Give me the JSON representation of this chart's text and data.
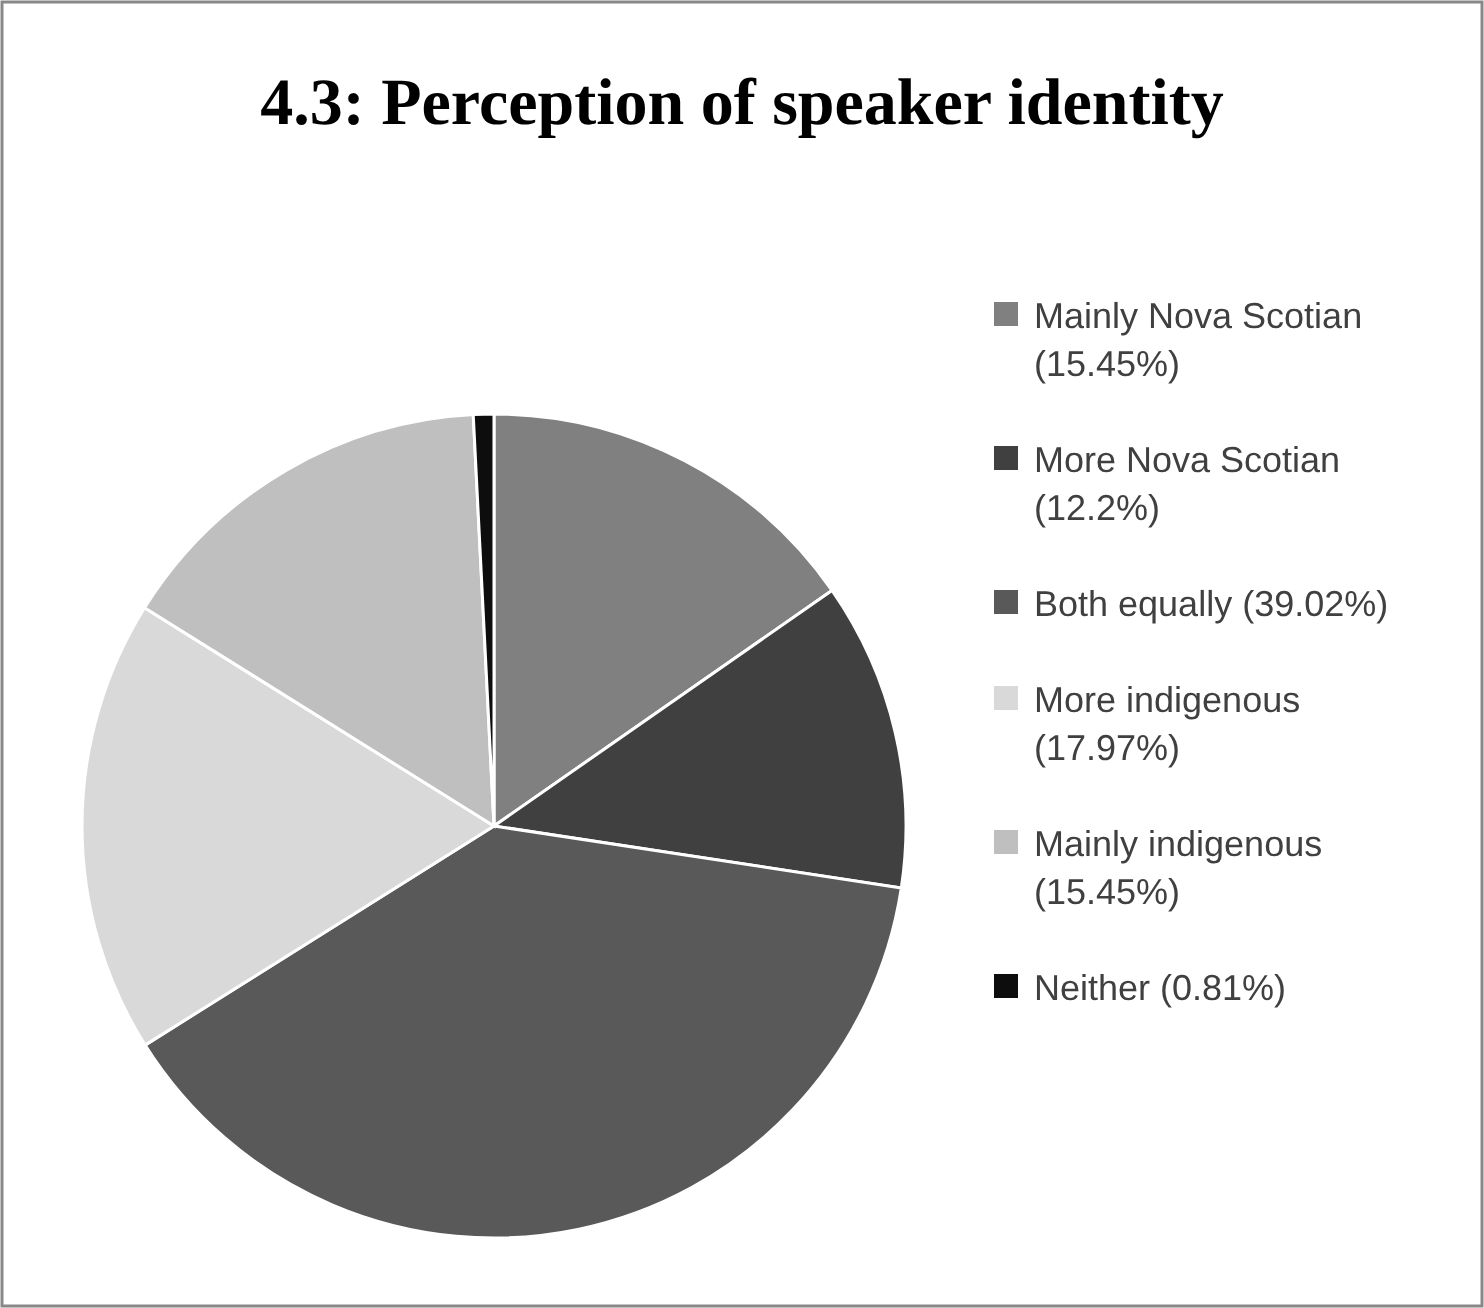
{
  "chart_data": {
    "type": "pie",
    "title": "4.3: Perception of speaker identity",
    "categories": [
      "Mainly Nova Scotian (15.45%)",
      "More Nova Scotian (12.2%)",
      "Both equally (39.02%)",
      "More indigenous (17.97%)",
      "Mainly indigenous (15.45%)",
      "Neither (0.81%)"
    ],
    "values": [
      15.45,
      12.2,
      39.02,
      17.97,
      15.45,
      0.81
    ],
    "colors": [
      "#808080",
      "#404040",
      "#595959",
      "#d9d9d9",
      "#bfbfbf",
      "#0d0d0d"
    ],
    "legend": "right"
  }
}
